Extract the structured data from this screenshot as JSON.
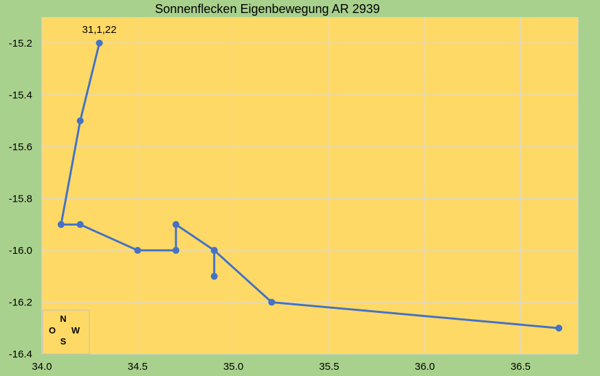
{
  "chart_data": {
    "type": "scatter",
    "title": "Sonnenflecken Eigenbewegung AR 2939",
    "xlabel": "",
    "ylabel": "",
    "xlim": [
      34.0,
      36.8
    ],
    "ylim": [
      -16.4,
      -15.1
    ],
    "x_ticks": [
      34.0,
      34.5,
      35.0,
      35.5,
      36.0,
      36.5
    ],
    "y_ticks": [
      -15.2,
      -15.4,
      -15.6,
      -15.8,
      -16.0,
      -16.2,
      -16.4
    ],
    "x_tick_labels": [
      "34.0",
      "34.5",
      "35.0",
      "35.5",
      "36.0",
      "36.5"
    ],
    "y_tick_labels": [
      "-15.2",
      "-15.4",
      "-15.6",
      "-15.8",
      "-16.0",
      "-16.2",
      "-16.4"
    ],
    "grid": true,
    "series": [
      {
        "color": "#4472c4",
        "points": [
          {
            "x": 34.3,
            "y": -15.2
          },
          {
            "x": 34.2,
            "y": -15.5
          },
          {
            "x": 34.1,
            "y": -15.9
          },
          {
            "x": 34.2,
            "y": -15.9
          },
          {
            "x": 34.5,
            "y": -16.0
          },
          {
            "x": 34.7,
            "y": -16.0
          },
          {
            "x": 34.7,
            "y": -15.9
          },
          {
            "x": 34.9,
            "y": -16.0
          },
          {
            "x": 34.9,
            "y": -16.1
          },
          {
            "x": 34.9,
            "y": -16.0
          },
          {
            "x": 35.2,
            "y": -16.2
          },
          {
            "x": 36.7,
            "y": -16.3
          }
        ]
      }
    ],
    "annotations": [
      {
        "text": "31,1,22",
        "x": 34.3,
        "y": -15.2
      }
    ],
    "compass": {
      "north": "N",
      "east": "O",
      "west": "W",
      "south": "S"
    },
    "colors": {
      "background": "#a9d18e",
      "plot_area": "#ffd966",
      "grid": "#d9d9d9",
      "series": "#4472c4"
    }
  }
}
